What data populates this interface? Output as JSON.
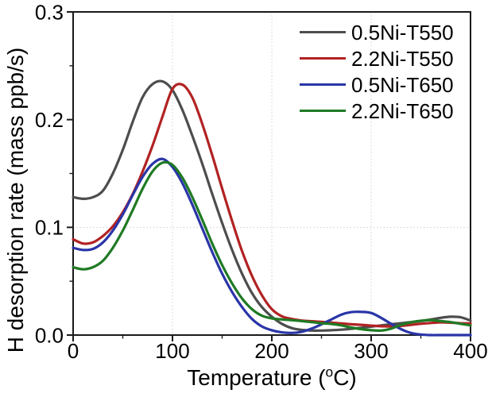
{
  "figure": {
    "background": "#ffffff",
    "axis_color": "#1a1a1a",
    "text_color": "#000000"
  },
  "chart_data": {
    "type": "line",
    "title": "",
    "xlabel": "Temperature (°C)",
    "xlabel_parts": {
      "pre": "Temperature (",
      "sup": "o",
      "post": "C)"
    },
    "ylabel": "H desorption rate (mass ppb/s)",
    "xlim": [
      0,
      400
    ],
    "ylim": [
      0,
      0.3
    ],
    "x_major_ticks": [
      0,
      100,
      200,
      300,
      400
    ],
    "x_tick_labels": [
      "0",
      "100",
      "200",
      "300",
      "400"
    ],
    "x_minor_ticks": [
      50,
      150,
      250,
      350
    ],
    "y_major_ticks": [
      0.0,
      0.1,
      0.2,
      0.3
    ],
    "y_tick_labels": [
      "0.0",
      "0.1",
      "0.2",
      "0.3"
    ],
    "y_minor_ticks": [
      0.05,
      0.15,
      0.25
    ],
    "grid": {
      "x_lines": [
        100,
        200,
        300
      ],
      "y_lines": [
        0.1
      ],
      "style": "dotted",
      "color": "#cccccc"
    },
    "legend": {
      "position": "top-right",
      "border": false
    },
    "x": [
      0,
      10,
      20,
      30,
      40,
      50,
      60,
      70,
      80,
      90,
      100,
      110,
      120,
      130,
      140,
      150,
      160,
      170,
      180,
      190,
      200,
      210,
      220,
      230,
      240,
      250,
      260,
      270,
      280,
      290,
      300,
      310,
      320,
      330,
      340,
      350,
      360,
      370,
      380,
      390,
      400
    ],
    "series": [
      {
        "name": "0.5Ni-T550",
        "color": "#4d4d4d",
        "values": [
          0.128,
          0.1265,
          0.128,
          0.134,
          0.15,
          0.172,
          0.198,
          0.221,
          0.233,
          0.2355,
          0.2275,
          0.209,
          0.185,
          0.159,
          0.131,
          0.104,
          0.079,
          0.057,
          0.039,
          0.026,
          0.017,
          0.0105,
          0.0065,
          0.0048,
          0.0042,
          0.0042,
          0.0045,
          0.005,
          0.0058,
          0.0068,
          0.0078,
          0.009,
          0.01,
          0.011,
          0.012,
          0.013,
          0.0145,
          0.016,
          0.017,
          0.0165,
          0.0135
        ]
      },
      {
        "name": "2.2Ni-T550",
        "color": "#b22222",
        "values": [
          0.089,
          0.085,
          0.086,
          0.092,
          0.101,
          0.114,
          0.131,
          0.152,
          0.176,
          0.203,
          0.2285,
          0.2325,
          0.2205,
          0.196,
          0.167,
          0.136,
          0.106,
          0.078,
          0.055,
          0.037,
          0.024,
          0.0175,
          0.015,
          0.0135,
          0.0128,
          0.0122,
          0.0115,
          0.0108,
          0.01,
          0.0095,
          0.0088,
          0.0082,
          0.008,
          0.0085,
          0.0095,
          0.0105,
          0.0112,
          0.0118,
          0.0115,
          0.011,
          0.0108
        ]
      },
      {
        "name": "0.5Ni-T650",
        "color": "#2a35a8",
        "values": [
          0.081,
          0.079,
          0.08,
          0.086,
          0.097,
          0.112,
          0.13,
          0.147,
          0.159,
          0.1635,
          0.156,
          0.141,
          0.121,
          0.099,
          0.077,
          0.057,
          0.04,
          0.026,
          0.015,
          0.008,
          0.0045,
          0.0025,
          0.002,
          0.003,
          0.006,
          0.01,
          0.0145,
          0.019,
          0.0213,
          0.0215,
          0.0205,
          0.016,
          0.0105,
          0.0055,
          0.002,
          0.0005,
          0.0,
          0.0,
          0.0,
          0.0,
          0.0
        ]
      },
      {
        "name": "2.2Ni-T650",
        "color": "#1f7a24",
        "values": [
          0.063,
          0.061,
          0.063,
          0.069,
          0.081,
          0.097,
          0.116,
          0.136,
          0.152,
          0.16,
          0.158,
          0.146,
          0.128,
          0.107,
          0.085,
          0.065,
          0.048,
          0.034,
          0.024,
          0.018,
          0.0155,
          0.0145,
          0.0138,
          0.013,
          0.012,
          0.011,
          0.0103,
          0.009,
          0.007,
          0.0055,
          0.0045,
          0.0042,
          0.006,
          0.0095,
          0.0118,
          0.0133,
          0.0138,
          0.013,
          0.012,
          0.0105,
          0.009
        ]
      }
    ]
  }
}
